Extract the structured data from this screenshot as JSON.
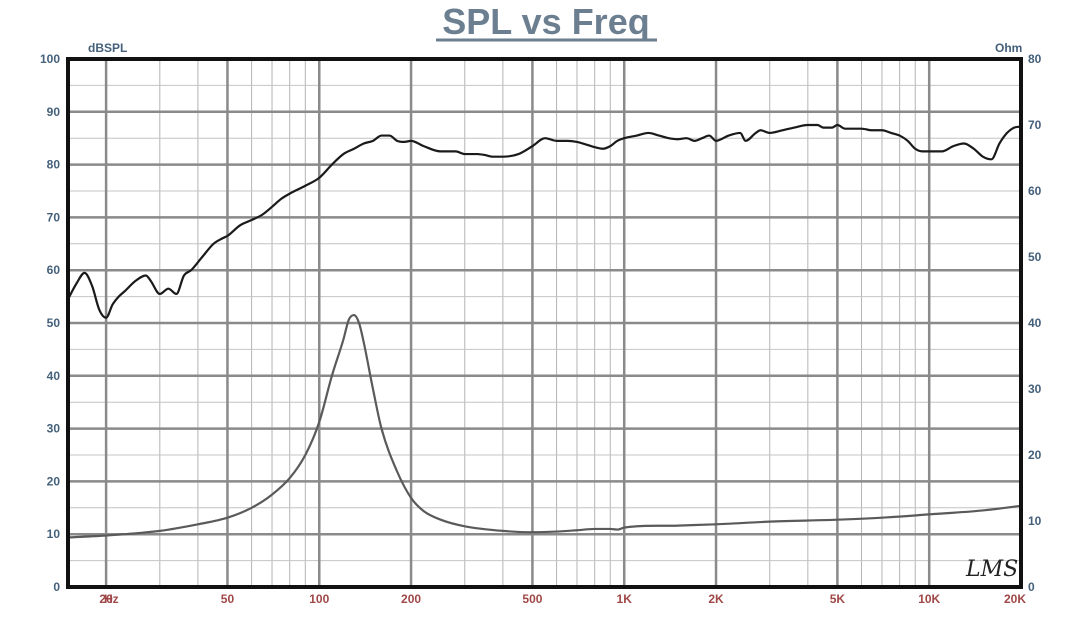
{
  "chart_data": {
    "type": "line",
    "title": "SPL vs Freq",
    "xlabel": "Hz",
    "left_axis_unit": "dBSPL",
    "right_axis_unit": "Ohm",
    "x_scale": "log",
    "xlim": [
      15,
      20000
    ],
    "ylim": [
      0,
      100
    ],
    "y2lim": [
      0,
      80
    ],
    "grid": true,
    "x_ticks": [
      {
        "label": "20",
        "value": 20
      },
      {
        "label": "50",
        "value": 50
      },
      {
        "label": "100",
        "value": 100
      },
      {
        "label": "200",
        "value": 200
      },
      {
        "label": "500",
        "value": 500
      },
      {
        "label": "1K",
        "value": 1000
      },
      {
        "label": "2K",
        "value": 2000
      },
      {
        "label": "5K",
        "value": 5000
      },
      {
        "label": "10K",
        "value": 10000
      },
      {
        "label": "20K",
        "value": 20000
      }
    ],
    "y_ticks": [
      "0",
      "10",
      "20",
      "30",
      "40",
      "50",
      "60",
      "70",
      "80",
      "90",
      "100"
    ],
    "y2_ticks": [
      "0",
      "10",
      "20",
      "30",
      "40",
      "50",
      "60",
      "70",
      "80"
    ],
    "series": [
      {
        "axis": "left",
        "color": "#1a1a1a",
        "x": [
          15,
          16,
          17,
          18,
          19,
          20,
          21,
          22,
          23,
          25,
          27,
          28,
          30,
          32,
          34,
          36,
          38,
          40,
          42,
          45,
          48,
          50,
          55,
          60,
          65,
          70,
          75,
          80,
          90,
          100,
          110,
          120,
          130,
          140,
          150,
          160,
          170,
          180,
          190,
          200,
          220,
          250,
          280,
          300,
          330,
          350,
          370,
          400,
          450,
          500,
          550,
          600,
          650,
          700,
          750,
          800,
          850,
          900,
          950,
          1000,
          1100,
          1200,
          1300,
          1400,
          1500,
          1600,
          1700,
          1800,
          1900,
          2000,
          2200,
          2400,
          2500,
          2700,
          2800,
          3000,
          3300,
          3600,
          4000,
          4300,
          4500,
          4800,
          5000,
          5300,
          5600,
          6000,
          6500,
          7000,
          7500,
          8000,
          8500,
          9000,
          9500,
          10000,
          11000,
          12000,
          13000,
          14000,
          15000,
          16000,
          17000,
          18000,
          19000,
          20000
        ],
        "values": [
          54.5,
          57.5,
          59.5,
          57,
          52.5,
          51,
          53.5,
          55,
          56,
          58,
          59,
          58,
          55.5,
          56.5,
          55.5,
          59,
          60,
          61.5,
          63,
          65,
          66,
          66.5,
          68.5,
          69.5,
          70.5,
          72,
          73.5,
          74.5,
          76,
          77.5,
          80,
          82,
          83,
          84,
          84.5,
          85.5,
          85.5,
          84.5,
          84.3,
          84.5,
          83.5,
          82.5,
          82.5,
          82,
          82,
          81.8,
          81.5,
          81.5,
          82,
          83.5,
          85,
          84.5,
          84.5,
          84.3,
          83.8,
          83.3,
          83,
          83.5,
          84.5,
          85,
          85.5,
          86,
          85.5,
          85,
          84.8,
          85,
          84.5,
          85,
          85.5,
          84.5,
          85.5,
          86,
          84.5,
          86,
          86.5,
          86,
          86.5,
          87,
          87.5,
          87.5,
          87,
          87,
          87.5,
          86.8,
          86.8,
          86.8,
          86.5,
          86.5,
          86,
          85.5,
          84.5,
          83,
          82.5,
          82.5,
          82.5,
          83.5,
          84,
          83,
          81.5,
          81,
          84,
          86,
          87,
          87.2
        ]
      },
      {
        "axis": "right",
        "color": "#5a5a5a",
        "x": [
          15,
          20,
          30,
          40,
          50,
          60,
          70,
          80,
          90,
          100,
          110,
          120,
          125,
          130,
          135,
          140,
          150,
          160,
          180,
          200,
          220,
          250,
          300,
          400,
          500,
          600,
          700,
          800,
          900,
          950,
          1000,
          1500,
          2000,
          3000,
          5000,
          7000,
          10000,
          15000,
          20000
        ],
        "values": [
          7.5,
          7.8,
          8.5,
          9.5,
          10.5,
          12,
          14,
          16.5,
          20,
          25,
          32,
          37.5,
          40.5,
          41.2,
          40,
          37,
          30,
          24,
          17.5,
          13.5,
          11.5,
          10.2,
          9.2,
          8.5,
          8.3,
          8.4,
          8.6,
          8.8,
          8.8,
          8.7,
          9,
          9.3,
          9.5,
          9.9,
          10.2,
          10.5,
          11,
          11.6,
          12.3
        ]
      }
    ]
  }
}
